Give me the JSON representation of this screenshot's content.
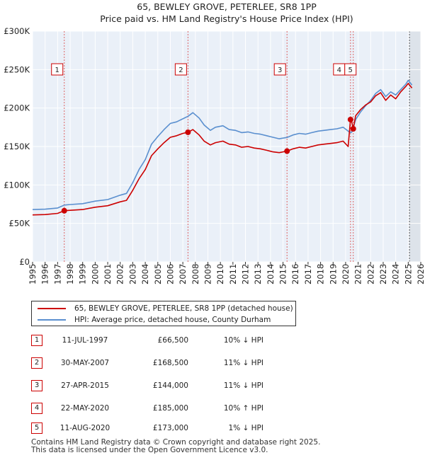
{
  "chart_data": {
    "type": "line",
    "title": "65, BEWLEY GROVE, PETERLEE, SR8 1PP",
    "subtitle": "Price paid vs. HM Land Registry's House Price Index (HPI)",
    "xlabel": "",
    "ylabel": "",
    "xlim": [
      1995,
      2026
    ],
    "ylim": [
      0,
      300000
    ],
    "y_ticks": [
      0,
      50000,
      100000,
      150000,
      200000,
      250000,
      300000
    ],
    "y_tick_labels": [
      "£0",
      "£50K",
      "£100K",
      "£150K",
      "£200K",
      "£250K",
      "£300K"
    ],
    "x_ticks": [
      1995,
      1996,
      1997,
      1998,
      1999,
      2000,
      2001,
      2002,
      2003,
      2004,
      2005,
      2006,
      2007,
      2008,
      2009,
      2010,
      2011,
      2012,
      2013,
      2014,
      2015,
      2016,
      2017,
      2018,
      2019,
      2020,
      2021,
      2022,
      2023,
      2024,
      2025,
      2026
    ],
    "x_tick_labels": [
      "1995",
      "1996",
      "1997",
      "1998",
      "1999",
      "2000",
      "2001",
      "2002",
      "2003",
      "2004",
      "2005",
      "2006",
      "2007",
      "2008",
      "2009",
      "2010",
      "2011",
      "2012",
      "2013",
      "2014",
      "2015",
      "2016",
      "2017",
      "2018",
      "2019",
      "2020",
      "2021",
      "2022",
      "2023",
      "2024",
      "2025",
      "2026"
    ],
    "grid": true,
    "shaded_region": [
      2025.1,
      2026
    ],
    "series": [
      {
        "name": "65, BEWLEY GROVE, PETERLEE, SR8 1PP (detached house)",
        "color": "#cc0000",
        "x": [
          1995.0,
          1996.0,
          1997.0,
          1997.53,
          1998.0,
          1999.0,
          2000.0,
          2001.0,
          2002.0,
          2002.5,
          2003.0,
          2003.5,
          2004.0,
          2004.5,
          2005.0,
          2005.5,
          2006.0,
          2006.5,
          2007.0,
          2007.41,
          2007.8,
          2008.3,
          2008.7,
          2009.2,
          2009.6,
          2010.2,
          2010.7,
          2011.2,
          2011.7,
          2012.2,
          2012.7,
          2013.2,
          2013.7,
          2014.2,
          2014.7,
          2015.32,
          2015.8,
          2016.3,
          2016.8,
          2017.3,
          2017.8,
          2018.3,
          2018.8,
          2019.3,
          2019.8,
          2020.2,
          2020.39,
          2020.5,
          2020.61,
          2020.8,
          2021.2,
          2021.6,
          2022.0,
          2022.4,
          2022.8,
          2023.2,
          2023.6,
          2024.0,
          2024.4,
          2024.8,
          2025.0,
          2025.3
        ],
        "y": [
          61000,
          61500,
          63000,
          66500,
          67000,
          68000,
          71000,
          73000,
          78000,
          80000,
          93000,
          108000,
          120000,
          138000,
          147000,
          155000,
          162000,
          164000,
          167000,
          168500,
          172000,
          165000,
          157000,
          152000,
          155000,
          157000,
          153000,
          152000,
          149000,
          150000,
          148000,
          147000,
          145000,
          143000,
          142000,
          144000,
          147000,
          149000,
          148000,
          150000,
          152000,
          153000,
          154000,
          155000,
          157000,
          150000,
          185000,
          181000,
          173000,
          190000,
          198000,
          204000,
          208000,
          216000,
          220000,
          210000,
          217000,
          212000,
          221000,
          228000,
          232000,
          226000
        ]
      },
      {
        "name": "HPI: Average price, detached house, County Durham",
        "color": "#5a8fcf",
        "x": [
          1995.0,
          1996.0,
          1997.0,
          1997.53,
          1998.0,
          1999.0,
          2000.0,
          2001.0,
          2002.0,
          2002.5,
          2003.0,
          2003.5,
          2004.0,
          2004.5,
          2005.0,
          2005.5,
          2006.0,
          2006.5,
          2007.0,
          2007.41,
          2007.8,
          2008.3,
          2008.7,
          2009.2,
          2009.6,
          2010.2,
          2010.7,
          2011.2,
          2011.7,
          2012.2,
          2012.7,
          2013.2,
          2013.7,
          2014.2,
          2014.7,
          2015.32,
          2015.8,
          2016.3,
          2016.8,
          2017.3,
          2017.8,
          2018.3,
          2018.8,
          2019.3,
          2019.8,
          2020.2,
          2020.39,
          2020.5,
          2020.61,
          2020.8,
          2021.2,
          2021.6,
          2022.0,
          2022.4,
          2022.8,
          2023.2,
          2023.6,
          2024.0,
          2024.4,
          2024.8,
          2025.0,
          2025.3
        ],
        "y": [
          68000,
          68500,
          70000,
          73800,
          74500,
          75600,
          79000,
          81000,
          86700,
          89000,
          103000,
          120000,
          133000,
          153000,
          163000,
          172000,
          180000,
          182000,
          186000,
          189300,
          194000,
          187000,
          178000,
          171000,
          175000,
          177000,
          172000,
          171000,
          168000,
          169000,
          167000,
          166000,
          164000,
          162000,
          160000,
          161800,
          165000,
          167000,
          166000,
          168000,
          170000,
          171000,
          172000,
          173000,
          175000,
          170000,
          168000,
          169000,
          174800,
          185000,
          195000,
          203000,
          210000,
          219000,
          224000,
          215000,
          221000,
          217000,
          224000,
          231000,
          236000,
          230000
        ]
      }
    ],
    "sales": [
      {
        "id": "1",
        "x": 1997.53,
        "y": 66500
      },
      {
        "id": "2",
        "x": 2007.41,
        "y": 168500
      },
      {
        "id": "3",
        "x": 2015.32,
        "y": 144000
      },
      {
        "id": "4",
        "x": 2020.39,
        "y": 185000
      },
      {
        "id": "5",
        "x": 2020.61,
        "y": 173000
      }
    ]
  },
  "legend": {
    "red_label": "65, BEWLEY GROVE, PETERLEE, SR8 1PP (detached house)",
    "blue_label": "HPI: Average price, detached house, County Durham"
  },
  "sales_table": [
    {
      "num": "1",
      "date": "11-JUL-1997",
      "price": "£66,500",
      "hpi": "10% ↓ HPI"
    },
    {
      "num": "2",
      "date": "30-MAY-2007",
      "price": "£168,500",
      "hpi": "11% ↓ HPI"
    },
    {
      "num": "3",
      "date": "27-APR-2015",
      "price": "£144,000",
      "hpi": "11% ↓ HPI"
    },
    {
      "num": "4",
      "date": "22-MAY-2020",
      "price": "£185,000",
      "hpi": "10% ↑ HPI"
    },
    {
      "num": "5",
      "date": "11-AUG-2020",
      "price": "£173,000",
      "hpi": "1% ↓ HPI"
    }
  ],
  "footer": {
    "line1": "Contains HM Land Registry data © Crown copyright and database right 2025.",
    "line2": "This data is licensed under the Open Government Licence v3.0."
  }
}
